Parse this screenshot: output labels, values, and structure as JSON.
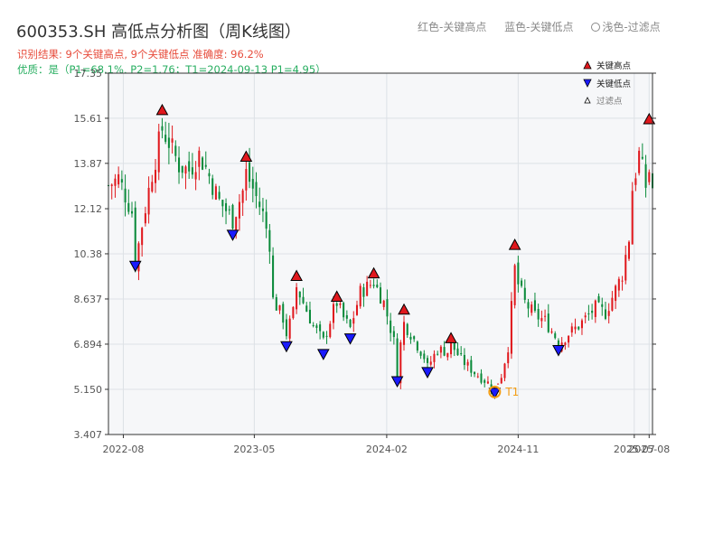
{
  "header": {
    "title": "600353.SH 高低点分析图（周K线图）",
    "legend_red": "红色-关键高点",
    "legend_blue": "蓝色-关键低点",
    "legend_filtered": "浅色-过滤点",
    "result_line": "识别结果: 9个关键高点, 9个关键低点  准确度: 96.2%",
    "quality_line": "优质：是（P1=68.1%, P2=1.76；T1=2024-09-13 P1=4.95）"
  },
  "colors": {
    "up": "#e0181d",
    "down": "#0a8a3a",
    "high_marker": "#e0181d",
    "low_marker": "#1a1aff",
    "t1_marker": "#f39c12",
    "plot_bg": "#f6f7f9",
    "grid": "#dde1e6"
  },
  "chart_data": {
    "type": "candlestick",
    "ylim": [
      3.407,
      17.35
    ],
    "yticks": [
      3.407,
      5.15,
      6.894,
      8.637,
      10.38,
      12.12,
      13.87,
      15.61,
      17.35
    ],
    "ytick_labels": [
      "3.407",
      "5.150",
      "6.894",
      "8.637",
      "10.38",
      "12.12",
      "13.87",
      "15.61",
      "17.35"
    ],
    "xlim": [
      "2022-07-01",
      "2025-08-08"
    ],
    "xticks": [
      "2022-08",
      "2023-05",
      "2024-02",
      "2024-11",
      "2025-07",
      "2025-08"
    ],
    "close_anchors": [
      [
        "2022-07-01",
        13.0
      ],
      [
        "2022-07-22",
        13.3
      ],
      [
        "2022-08-19",
        12.0
      ],
      [
        "2022-08-26",
        10.0
      ],
      [
        "2022-09-09",
        11.5
      ],
      [
        "2022-09-30",
        13.5
      ],
      [
        "2022-10-21",
        15.2
      ],
      [
        "2022-11-04",
        14.7
      ],
      [
        "2022-11-25",
        13.8
      ],
      [
        "2022-12-16",
        13.6
      ],
      [
        "2023-01-06",
        14.2
      ],
      [
        "2023-01-20",
        13.7
      ],
      [
        "2023-02-17",
        12.4
      ],
      [
        "2023-03-10",
        11.9
      ],
      [
        "2023-03-17",
        11.7
      ],
      [
        "2023-04-07",
        12.8
      ],
      [
        "2023-04-14",
        13.5
      ],
      [
        "2023-04-28",
        12.9
      ],
      [
        "2023-05-19",
        11.9
      ],
      [
        "2023-06-02",
        10.8
      ],
      [
        "2023-06-09",
        8.6
      ],
      [
        "2023-06-30",
        7.9
      ],
      [
        "2023-07-07",
        7.3
      ],
      [
        "2023-07-21",
        8.1
      ],
      [
        "2023-07-28",
        9.1
      ],
      [
        "2023-08-18",
        8.2
      ],
      [
        "2023-09-01",
        7.6
      ],
      [
        "2023-09-22",
        7.0
      ],
      [
        "2023-10-13",
        8.2
      ],
      [
        "2023-10-20",
        8.5
      ],
      [
        "2023-11-03",
        7.9
      ],
      [
        "2023-11-17",
        7.5
      ],
      [
        "2023-12-08",
        8.9
      ],
      [
        "2024-01-05",
        9.3
      ],
      [
        "2024-01-26",
        8.5
      ],
      [
        "2024-02-16",
        7.0
      ],
      [
        "2024-02-23",
        5.6
      ],
      [
        "2024-03-01",
        6.9
      ],
      [
        "2024-03-08",
        7.7
      ],
      [
        "2024-03-22",
        7.3
      ],
      [
        "2024-04-19",
        6.4
      ],
      [
        "2024-04-26",
        6.0
      ],
      [
        "2024-05-17",
        6.7
      ],
      [
        "2024-06-07",
        6.6
      ],
      [
        "2024-06-14",
        6.9
      ],
      [
        "2024-07-05",
        6.3
      ],
      [
        "2024-08-02",
        5.8
      ],
      [
        "2024-08-30",
        5.4
      ],
      [
        "2024-09-13",
        5.2
      ],
      [
        "2024-09-27",
        5.7
      ],
      [
        "2024-10-11",
        6.8
      ],
      [
        "2024-10-25",
        9.8
      ],
      [
        "2024-11-01",
        9.2
      ],
      [
        "2024-11-15",
        8.5
      ],
      [
        "2024-12-06",
        8.0
      ],
      [
        "2024-12-27",
        7.8
      ],
      [
        "2025-01-17",
        7.2
      ],
      [
        "2025-01-24",
        6.9
      ],
      [
        "2025-02-14",
        7.3
      ],
      [
        "2025-03-07",
        7.6
      ],
      [
        "2025-04-11",
        8.3
      ],
      [
        "2025-05-02",
        8.1
      ],
      [
        "2025-05-23",
        9.0
      ],
      [
        "2025-06-06",
        9.6
      ],
      [
        "2025-06-20",
        11.0
      ],
      [
        "2025-06-27",
        12.9
      ],
      [
        "2025-07-11",
        14.2
      ],
      [
        "2025-07-25",
        13.0
      ],
      [
        "2025-08-01",
        13.6
      ],
      [
        "2025-08-08",
        12.9
      ]
    ],
    "key_highs": [
      {
        "date": "2022-10-21",
        "price": 15.75
      },
      {
        "date": "2023-04-14",
        "price": 13.95
      },
      {
        "date": "2023-07-28",
        "price": 9.35
      },
      {
        "date": "2023-10-20",
        "price": 8.55
      },
      {
        "date": "2024-01-05",
        "price": 9.45
      },
      {
        "date": "2024-03-08",
        "price": 8.05
      },
      {
        "date": "2024-06-14",
        "price": 6.95
      },
      {
        "date": "2024-10-25",
        "price": 10.55
      },
      {
        "date": "2025-08-01",
        "price": 15.4
      }
    ],
    "key_lows": [
      {
        "date": "2022-08-26",
        "price": 9.95
      },
      {
        "date": "2023-03-17",
        "price": 11.15
      },
      {
        "date": "2023-07-07",
        "price": 6.85
      },
      {
        "date": "2023-09-22",
        "price": 6.55
      },
      {
        "date": "2023-11-17",
        "price": 7.15
      },
      {
        "date": "2024-02-23",
        "price": 5.5
      },
      {
        "date": "2024-04-26",
        "price": 5.85
      },
      {
        "date": "2024-09-13",
        "price": 5.05
      },
      {
        "date": "2025-01-24",
        "price": 6.7
      }
    ],
    "t1": {
      "date": "2024-09-13",
      "price": 5.05,
      "label": "T1"
    },
    "legend": {
      "high": "关键高点",
      "low": "关键低点",
      "filtered": "过滤点"
    }
  }
}
